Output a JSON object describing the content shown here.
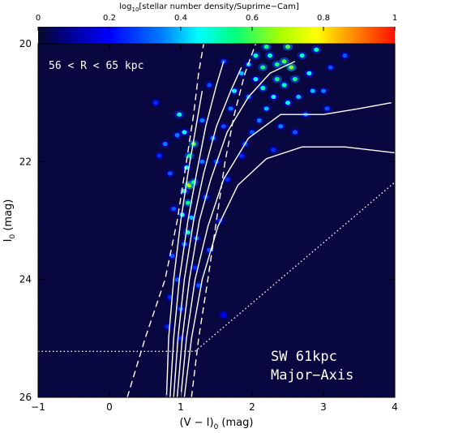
{
  "chart_data": {
    "type": "heatmap",
    "colorbar": {
      "title": "log",
      "title_sub": "10",
      "title_rest": "[stellar number density/Suprime−Cam]",
      "range": [
        0,
        1
      ],
      "ticks": [
        "0",
        "0.2",
        "0.4",
        "0.6",
        "0.8",
        "1"
      ],
      "colormap": [
        "#0a0a28",
        "#000090",
        "#0000ff",
        "#00ffff",
        "#00ff40",
        "#ffff00",
        "#ff8000",
        "#ff0000"
      ]
    },
    "xaxis": {
      "label_main": "(V − I)",
      "label_sub": "0",
      "label_rest": " (mag)",
      "range": [
        -1,
        4
      ],
      "ticks": [
        "−1",
        "0",
        "1",
        "2",
        "3",
        "4"
      ]
    },
    "yaxis": {
      "label_main": "I",
      "label_sub": "0",
      "label_rest": " (mag)",
      "range": [
        26,
        20
      ],
      "ticks": [
        "20",
        "22",
        "24",
        "26"
      ]
    },
    "annotations": {
      "radius_range": "56 < R < 65 kpc",
      "field": "SW 61kpc",
      "axis": "Major−Axis"
    },
    "background_color": "#08073f",
    "density_blobs": [
      [
        0.78,
        21.7,
        0.35
      ],
      [
        0.98,
        21.2,
        0.5
      ],
      [
        1.05,
        21.5,
        0.45
      ],
      [
        1.12,
        21.9,
        0.55
      ],
      [
        1.18,
        21.7,
        0.6
      ],
      [
        1.08,
        22.1,
        0.45
      ],
      [
        1.12,
        22.4,
        0.7
      ],
      [
        1.05,
        22.5,
        0.5
      ],
      [
        1.18,
        22.35,
        0.55
      ],
      [
        1.1,
        22.7,
        0.55
      ],
      [
        1.02,
        22.9,
        0.45
      ],
      [
        1.15,
        22.95,
        0.4
      ],
      [
        1.1,
        23.2,
        0.5
      ],
      [
        1.05,
        23.4,
        0.35
      ],
      [
        1.22,
        23.3,
        0.35
      ],
      [
        0.85,
        22.2,
        0.3
      ],
      [
        0.9,
        22.8,
        0.3
      ],
      [
        0.88,
        23.6,
        0.3
      ],
      [
        0.95,
        24.0,
        0.3
      ],
      [
        0.85,
        24.3,
        0.25
      ],
      [
        1.0,
        24.5,
        0.3
      ],
      [
        0.82,
        24.8,
        0.25
      ],
      [
        1.35,
        22.6,
        0.3
      ],
      [
        1.4,
        23.5,
        0.3
      ],
      [
        1.25,
        24.1,
        0.3
      ],
      [
        1.3,
        21.3,
        0.35
      ],
      [
        1.45,
        21.6,
        0.35
      ],
      [
        1.5,
        22.0,
        0.3
      ],
      [
        1.6,
        21.4,
        0.3
      ],
      [
        1.7,
        21.1,
        0.35
      ],
      [
        1.75,
        20.8,
        0.45
      ],
      [
        1.85,
        20.5,
        0.4
      ],
      [
        1.95,
        20.9,
        0.35
      ],
      [
        2.05,
        20.6,
        0.45
      ],
      [
        2.15,
        20.4,
        0.55
      ],
      [
        2.25,
        20.2,
        0.5
      ],
      [
        2.35,
        20.6,
        0.55
      ],
      [
        2.45,
        20.3,
        0.6
      ],
      [
        2.55,
        20.4,
        0.65
      ],
      [
        2.6,
        20.6,
        0.55
      ],
      [
        2.7,
        20.2,
        0.5
      ],
      [
        2.8,
        20.5,
        0.45
      ],
      [
        2.9,
        20.1,
        0.5
      ],
      [
        2.45,
        20.7,
        0.5
      ],
      [
        2.3,
        20.9,
        0.45
      ],
      [
        2.2,
        21.1,
        0.4
      ],
      [
        2.1,
        21.3,
        0.35
      ],
      [
        2.5,
        21.0,
        0.45
      ],
      [
        2.65,
        20.9,
        0.4
      ],
      [
        2.75,
        21.2,
        0.35
      ],
      [
        2.4,
        21.4,
        0.35
      ],
      [
        2.0,
        21.5,
        0.3
      ],
      [
        1.9,
        21.7,
        0.3
      ],
      [
        2.6,
        21.5,
        0.3
      ],
      [
        3.0,
        20.8,
        0.35
      ],
      [
        3.1,
        20.4,
        0.3
      ],
      [
        2.2,
        20.05,
        0.55
      ],
      [
        2.5,
        20.05,
        0.6
      ],
      [
        1.6,
        20.3,
        0.3
      ],
      [
        1.4,
        20.7,
        0.3
      ],
      [
        1.85,
        21.9,
        0.25
      ],
      [
        2.3,
        21.8,
        0.25
      ],
      [
        3.3,
        20.2,
        0.3
      ],
      [
        0.65,
        21.0,
        0.25
      ],
      [
        0.7,
        21.9,
        0.25
      ],
      [
        1.55,
        23.0,
        0.25
      ],
      [
        1.65,
        22.3,
        0.25
      ],
      [
        1.2,
        23.8,
        0.25
      ],
      [
        1.0,
        25.0,
        0.25
      ],
      [
        1.6,
        24.6,
        0.2
      ],
      [
        2.05,
        20.2,
        0.5
      ],
      [
        2.85,
        20.8,
        0.4
      ],
      [
        2.35,
        20.35,
        0.55
      ],
      [
        2.15,
        20.75,
        0.5
      ],
      [
        1.95,
        20.35,
        0.4
      ],
      [
        3.05,
        21.1,
        0.3
      ],
      [
        1.3,
        22.0,
        0.35
      ],
      [
        0.95,
        21.55,
        0.35
      ]
    ]
  }
}
